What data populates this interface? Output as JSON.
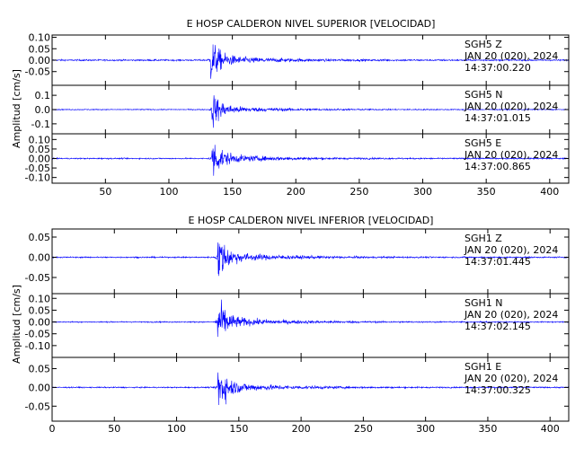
{
  "chart_data": [
    {
      "type": "line",
      "title": "E HOSP CALDERON NIVEL SUPERIOR [VELOCIDAD]",
      "ylabel": "Amplitud [cm/s]",
      "xlim": [
        8,
        415
      ],
      "xticks": [
        50,
        100,
        150,
        200,
        250,
        300,
        350,
        400
      ],
      "xtick_labels": [
        "50",
        "100",
        "150",
        "200",
        "250",
        "300",
        "350",
        "400"
      ],
      "channels": [
        {
          "station": "SGH5",
          "component": "Z",
          "date": "JAN 20 (020), 2024",
          "time": "14:37:00.220",
          "ylim": [
            -0.11,
            0.11
          ],
          "yticks": [
            0.1,
            0.05,
            0.0,
            -0.05
          ],
          "ytick_labels": [
            "0.10",
            "0.05",
            "0.00",
            "-0.05"
          ],
          "onset": 133,
          "peak": 0.11,
          "noise": 0.004,
          "color": "#0000ff"
        },
        {
          "station": "SGH5",
          "component": "N",
          "date": "JAN 20 (020), 2024",
          "time": "14:37:01.015",
          "ylim": [
            -0.17,
            0.17
          ],
          "yticks": [
            0.1,
            0.0,
            -0.1
          ],
          "ytick_labels": [
            "0.1",
            "0.0",
            "-0.1"
          ],
          "onset": 134,
          "peak": 0.15,
          "noise": 0.004,
          "color": "#0000ff"
        },
        {
          "station": "SGH5",
          "component": "E",
          "date": "JAN 20 (020), 2024",
          "time": "14:37:00.865",
          "ylim": [
            -0.13,
            0.13
          ],
          "yticks": [
            0.1,
            0.05,
            0.0,
            -0.05,
            -0.1
          ],
          "ytick_labels": [
            "0.10",
            "0.05",
            "0.00",
            "-0.05",
            "-0.10"
          ],
          "onset": 134,
          "peak": 0.13,
          "noise": 0.004,
          "color": "#0000ff"
        }
      ]
    },
    {
      "type": "line",
      "title": "E HOSP CALDERON NIVEL INFERIOR [VELOCIDAD]",
      "ylabel": "Amplitud [cm/s]",
      "xlim": [
        0,
        415
      ],
      "xticks": [
        0,
        50,
        100,
        150,
        200,
        250,
        300,
        350,
        400
      ],
      "xtick_labels": [
        "0",
        "50",
        "100",
        "150",
        "200",
        "250",
        "300",
        "350",
        "400"
      ],
      "channels": [
        {
          "station": "SGH1",
          "component": "Z",
          "date": "JAN 20 (020), 2024",
          "time": "14:37:01.445",
          "ylim": [
            -0.09,
            0.07
          ],
          "yticks": [
            0.05,
            0.0,
            -0.05
          ],
          "ytick_labels": [
            "0.05",
            "0.00",
            "-0.05"
          ],
          "onset": 133,
          "peak": 0.07,
          "noise": 0.002,
          "color": "#0000ff"
        },
        {
          "station": "SGH1",
          "component": "N",
          "date": "JAN 20 (020), 2024",
          "time": "14:37:02.145",
          "ylim": [
            -0.15,
            0.12
          ],
          "yticks": [
            0.1,
            0.05,
            0.0,
            -0.05,
            -0.1
          ],
          "ytick_labels": [
            "0.10",
            "0.05",
            "0.00",
            "-0.05",
            "-0.10"
          ],
          "onset": 133,
          "peak": 0.12,
          "noise": 0.003,
          "color": "#0000ff"
        },
        {
          "station": "SGH1",
          "component": "E",
          "date": "JAN 20 (020), 2024",
          "time": "14:37:00.325",
          "ylim": [
            -0.09,
            0.08
          ],
          "yticks": [
            0.05,
            0.0,
            -0.05
          ],
          "ytick_labels": [
            "0.05",
            "0.00",
            "-0.05"
          ],
          "onset": 133,
          "peak": 0.08,
          "noise": 0.002,
          "color": "#0000ff"
        }
      ]
    }
  ]
}
